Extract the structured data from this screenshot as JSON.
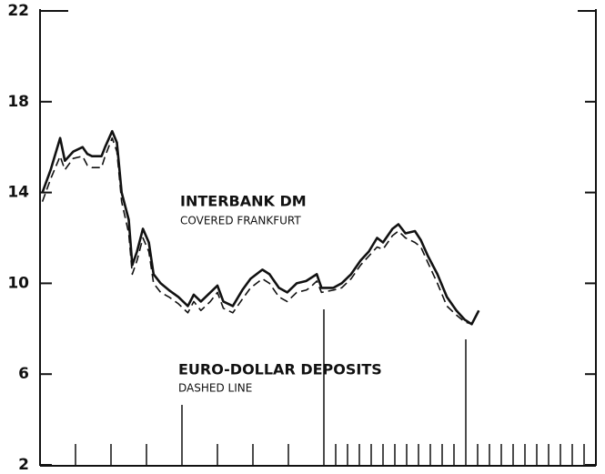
{
  "chart_data": {
    "type": "line",
    "x": [
      0.2,
      0.9,
      1.7,
      2.1,
      2.8,
      3.6,
      4.0,
      4.4,
      5.2,
      5.5,
      6.1,
      6.5,
      6.9,
      7.5,
      7.8,
      8.2,
      8.7,
      9.2,
      9.6,
      10.2,
      10.9,
      11.7,
      12.5,
      13.0,
      13.6,
      14.4,
      15.0,
      15.5,
      16.3,
      17.1,
      17.8,
      18.8,
      19.4,
      20.2,
      20.9,
      21.7,
      22.5,
      22.8,
      23.4,
      23.8,
      24.8,
      25.5,
      26.3,
      27.1,
      27.8,
      28.5,
      29.0,
      29.8,
      30.3,
      30.9,
      31.7,
      32.2,
      32.8,
      33.6,
      34.4,
      35.2,
      35.9,
      36.5,
      37.1
    ],
    "series": [
      {
        "name": "INTERBANK DM",
        "note": "COVERED FRANKFURT",
        "color": "#111111",
        "dashed": false,
        "values": [
          14.0,
          15.0,
          16.4,
          15.4,
          15.8,
          16.0,
          15.7,
          15.6,
          15.6,
          16.0,
          16.7,
          16.2,
          14.0,
          12.8,
          10.8,
          11.4,
          12.4,
          11.8,
          10.4,
          10.0,
          9.7,
          9.4,
          9.0,
          9.5,
          9.2,
          9.6,
          9.9,
          9.2,
          9.0,
          9.7,
          10.2,
          10.6,
          10.4,
          9.8,
          9.6,
          10.0,
          10.1,
          10.2,
          10.4,
          9.8,
          9.8,
          10.0,
          10.4,
          11.0,
          11.4,
          12.0,
          11.8,
          12.4,
          12.6,
          12.2,
          12.3,
          11.9,
          11.2,
          10.4,
          9.4,
          8.8,
          8.4,
          8.2,
          8.8
        ]
      },
      {
        "name": "EURO-DOLLAR DEPOSITS",
        "note": "DASHED LINE",
        "color": "#111111",
        "dashed": true,
        "values": [
          13.6,
          14.6,
          15.6,
          15.0,
          15.5,
          15.6,
          15.2,
          15.1,
          15.1,
          15.6,
          16.4,
          15.8,
          13.6,
          12.2,
          10.4,
          11.0,
          12.0,
          11.4,
          10.0,
          9.6,
          9.4,
          9.1,
          8.7,
          9.2,
          8.8,
          9.2,
          9.6,
          8.9,
          8.7,
          9.3,
          9.8,
          10.2,
          10.0,
          9.4,
          9.2,
          9.6,
          9.7,
          9.8,
          10.1,
          9.6,
          9.7,
          9.8,
          10.2,
          10.8,
          11.2,
          11.6,
          11.5,
          12.1,
          12.3,
          12.0,
          11.8,
          11.6,
          10.9,
          10.0,
          9.0,
          8.6,
          8.3,
          8.2,
          null
        ]
      }
    ],
    "xlim": [
      0,
      47
    ],
    "xticks": [
      3,
      6,
      9,
      12,
      15,
      18,
      21,
      24,
      25,
      26,
      27,
      28,
      29,
      30,
      31,
      32,
      33,
      34,
      35,
      36,
      37,
      38,
      39,
      40,
      41,
      42,
      43,
      44,
      45,
      46,
      47
    ],
    "xticks_major": [
      12,
      24,
      36
    ],
    "ylim": [
      2,
      22
    ],
    "yticks": [
      2,
      6,
      10,
      14,
      18,
      22
    ],
    "grid": false
  }
}
